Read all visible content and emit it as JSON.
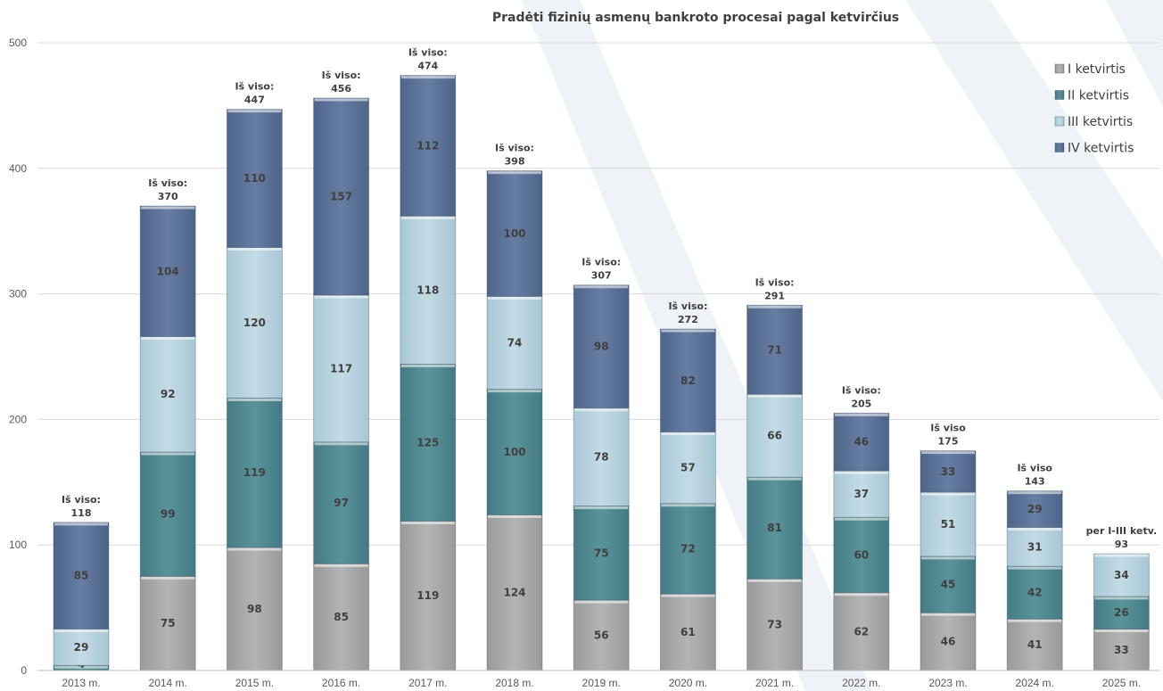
{
  "chart_data": {
    "type": "bar",
    "stacked": true,
    "title": "Pradėti fizinių asmenų bankroto procesai pagal ketvirčius",
    "categories": [
      "2013 m.",
      "2014 m.",
      "2015 m.",
      "2016 m.",
      "2017 m.",
      "2018 m.",
      "2019 m.",
      "2020 m.",
      "2021 m.",
      "2022 m.",
      "2023 m.",
      "2024 m.",
      "2025 m."
    ],
    "series": [
      {
        "name": "I ketvirtis",
        "color": "#a9a9a9",
        "values": [
          0,
          75,
          98,
          85,
          119,
          124,
          56,
          61,
          73,
          62,
          46,
          41,
          33
        ]
      },
      {
        "name": "II ketvirtis",
        "color": "#4f8790",
        "values": [
          4,
          99,
          119,
          97,
          125,
          100,
          75,
          72,
          81,
          60,
          45,
          42,
          26
        ]
      },
      {
        "name": "III ketvirtis",
        "color": "#b8d4e0",
        "values": [
          29,
          92,
          120,
          117,
          118,
          74,
          78,
          57,
          66,
          37,
          51,
          31,
          34
        ]
      },
      {
        "name": "IV ketvirtis",
        "color": "#5b7296",
        "values": [
          85,
          104,
          110,
          157,
          112,
          100,
          98,
          82,
          71,
          46,
          33,
          29,
          null
        ]
      }
    ],
    "segment_labels": [
      [
        "",
        "75",
        "98",
        "85",
        "119",
        "124",
        "56",
        "61",
        "73",
        "62",
        "46",
        "41",
        "33"
      ],
      [
        "4",
        "99",
        "119",
        "97",
        "125",
        "100",
        "75",
        "72",
        "81",
        "60",
        "45",
        "42",
        "26"
      ],
      [
        "29",
        "92",
        "120",
        "117",
        "118",
        "74",
        "78",
        "57",
        "66",
        "37",
        "51",
        "31",
        "34"
      ],
      [
        "85",
        "104",
        "110",
        "157",
        "112",
        "100",
        "98",
        "82",
        "71",
        "46",
        "33",
        "29",
        ""
      ]
    ],
    "totals": [
      {
        "label": "Iš viso:",
        "value": "118"
      },
      {
        "label": "Iš viso:",
        "value": "370"
      },
      {
        "label": "Iš viso:",
        "value": "447"
      },
      {
        "label": "Iš viso:",
        "value": "456"
      },
      {
        "label": "Iš viso:",
        "value": "474"
      },
      {
        "label": "Iš viso:",
        "value": "398"
      },
      {
        "label": "Iš viso:",
        "value": "307"
      },
      {
        "label": "Iš viso:",
        "value": "272"
      },
      {
        "label": "Iš viso:",
        "value": "291"
      },
      {
        "label": "Iš viso:",
        "value": "205"
      },
      {
        "label": "Iš viso",
        "value": "175"
      },
      {
        "label": "Iš viso",
        "value": "143"
      },
      {
        "label": "per I-III ketv.",
        "value": "93"
      }
    ],
    "yticks": [
      "0",
      "100",
      "200",
      "300",
      "400",
      "500"
    ],
    "ylim": [
      0,
      500
    ],
    "legend_position": "top-right",
    "grid": true
  }
}
